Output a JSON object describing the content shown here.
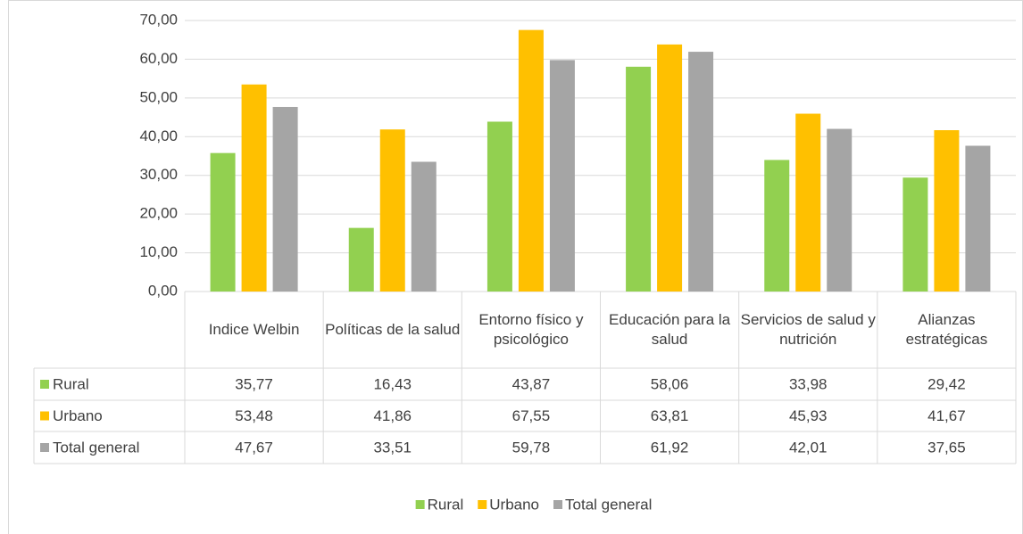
{
  "chart_data": {
    "type": "bar",
    "categories": [
      "Indice Welbin",
      "Políticas de la salud",
      "Entorno físico y psicológico",
      "Educación para la salud",
      "Servicios de salud y nutrición",
      "Alianzas estratégicas"
    ],
    "series": [
      {
        "name": "Rural",
        "color": "#92d050",
        "values": [
          35.77,
          16.43,
          43.87,
          58.06,
          33.98,
          29.42
        ],
        "value_labels": [
          "35,77",
          "16,43",
          "43,87",
          "58,06",
          "33,98",
          "29,42"
        ]
      },
      {
        "name": "Urbano",
        "color": "#ffc000",
        "values": [
          53.48,
          41.86,
          67.55,
          63.81,
          45.93,
          41.67
        ],
        "value_labels": [
          "53,48",
          "41,86",
          "67,55",
          "63,81",
          "45,93",
          "41,67"
        ]
      },
      {
        "name": "Total general",
        "color": "#a5a5a5",
        "values": [
          47.67,
          33.51,
          59.78,
          61.92,
          42.01,
          37.65
        ],
        "value_labels": [
          "47,67",
          "33,51",
          "59,78",
          "61,92",
          "42,01",
          "37,65"
        ]
      }
    ],
    "ylim": [
      0,
      70
    ],
    "yticks": [
      {
        "value": 0,
        "label": "0,00"
      },
      {
        "value": 10,
        "label": "10,00"
      },
      {
        "value": 20,
        "label": "20,00"
      },
      {
        "value": 30,
        "label": "30,00"
      },
      {
        "value": 40,
        "label": "40,00"
      },
      {
        "value": 50,
        "label": "50,00"
      },
      {
        "value": 60,
        "label": "60,00"
      },
      {
        "value": 70,
        "label": "70,00"
      }
    ],
    "legend": "bottom"
  }
}
